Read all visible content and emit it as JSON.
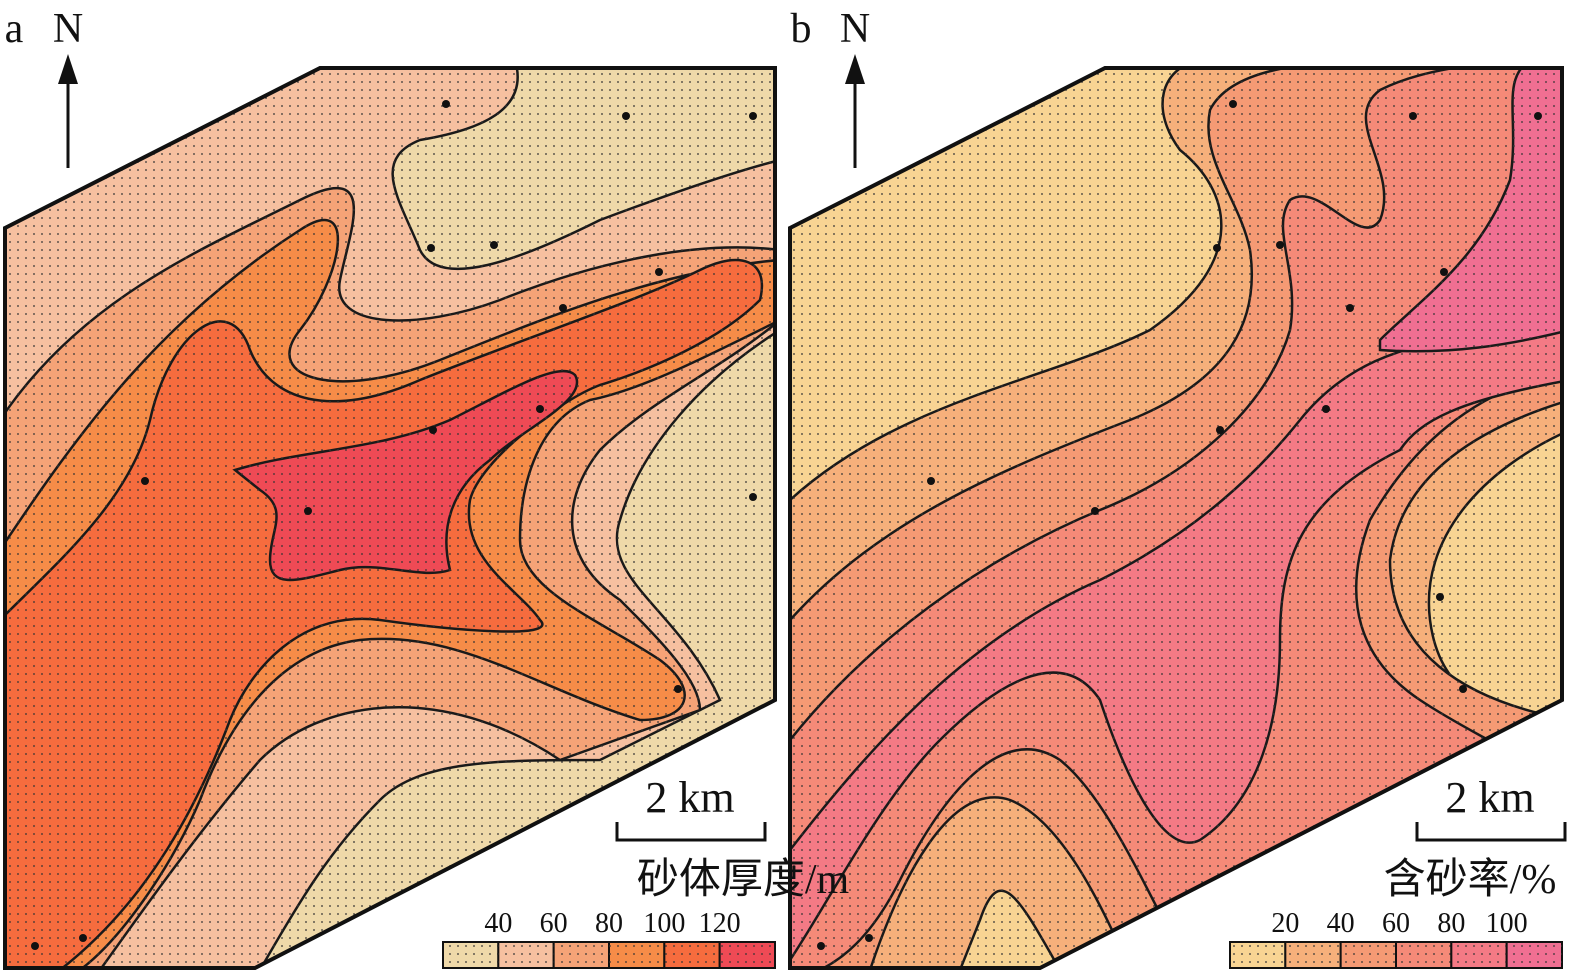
{
  "panels": [
    {
      "label": "a",
      "north": "N",
      "scale_bar": "2 km",
      "legend": {
        "title": "砂体厚度/m",
        "ticks": [
          40,
          60,
          80,
          100,
          120
        ],
        "colors": [
          "#efd9a9",
          "#f6c0a0",
          "#f5a377",
          "#f68c48",
          "#f66c3e",
          "#ef4a55"
        ]
      }
    },
    {
      "label": "b",
      "north": "N",
      "scale_bar": "2 km",
      "legend": {
        "title": "含砂率/%",
        "ticks": [
          20,
          40,
          60,
          80,
          100
        ],
        "colors": [
          "#f8d493",
          "#f6b07b",
          "#f59a74",
          "#f58a78",
          "#f47a85",
          "#f06f92"
        ]
      }
    }
  ]
}
